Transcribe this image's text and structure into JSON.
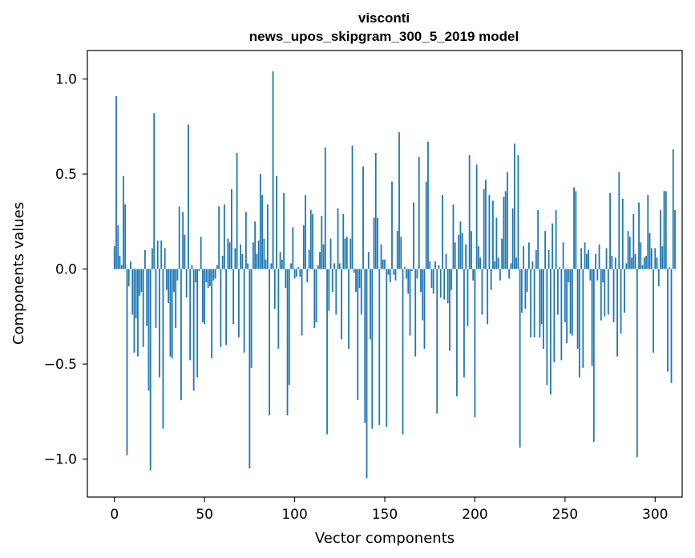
{
  "chart_data": {
    "type": "bar",
    "title": "visconti",
    "subtitle": "news_upos_skipgram_300_5_2019 model",
    "xlabel": "Vector components",
    "ylabel": "Components values",
    "xlim": [
      -15,
      315
    ],
    "ylim": [
      -1.2,
      1.15
    ],
    "xticks": [
      0,
      50,
      100,
      150,
      200,
      250,
      300
    ],
    "xtick_labels": [
      "0",
      "50",
      "100",
      "150",
      "200",
      "250",
      "300"
    ],
    "yticks": [
      -1.0,
      -0.5,
      0.0,
      0.5,
      1.0
    ],
    "ytick_labels": [
      "−1.0",
      "−0.5",
      "0.0",
      "0.5",
      "1.0"
    ],
    "bar_color": "#1f77b4",
    "grid": false,
    "series": [
      {
        "name": "visconti",
        "values": [
          0.12,
          0.91,
          0.23,
          0.07,
          0.02,
          0.49,
          0.34,
          -0.98,
          -0.09,
          0.04,
          -0.24,
          -0.44,
          -0.26,
          -0.46,
          -0.14,
          -0.12,
          -0.41,
          0.1,
          -0.3,
          -0.64,
          -1.06,
          0.11,
          0.82,
          -0.31,
          0.15,
          -0.57,
          0.15,
          -0.84,
          0.11,
          -0.11,
          -0.18,
          -0.46,
          -0.47,
          -0.12,
          -0.31,
          -0.06,
          0.33,
          -0.69,
          0.3,
          0.18,
          -0.15,
          0.76,
          -0.48,
          0.02,
          -0.64,
          -0.07,
          -0.57,
          -0.01,
          0.17,
          -0.28,
          -0.29,
          -0.07,
          -0.1,
          -0.09,
          -0.47,
          -0.06,
          -0.05,
          0.02,
          0.33,
          -0.41,
          0.07,
          0.34,
          -0.4,
          0.16,
          0.14,
          0.42,
          -0.29,
          0.11,
          0.61,
          -0.36,
          0.13,
          0.08,
          -0.44,
          0.3,
          0.03,
          -1.05,
          -0.52,
          0.14,
          0.25,
          0.08,
          0.15,
          0.5,
          0.39,
          0.16,
          0.05,
          0.34,
          -0.77,
          0.03,
          1.04,
          -0.21,
          0.49,
          -0.42,
          0.09,
          0.05,
          0.4,
          -0.1,
          -0.77,
          -0.61,
          0.03,
          0.22,
          -0.05,
          -0.04,
          0.01,
          -0.04,
          -0.35,
          0.23,
          0.39,
          -0.07,
          0.1,
          0.31,
          0.29,
          -0.31,
          -0.28,
          0.02,
          0.09,
          0.28,
          0.13,
          0.64,
          -0.87,
          -0.22,
          0.16,
          -0.12,
          0.03,
          -0.24,
          0.32,
          0.03,
          -0.37,
          0.29,
          0.16,
          0.17,
          -0.42,
          0.16,
          0.65,
          -0.02,
          -0.12,
          -0.69,
          -0.1,
          -0.24,
          0.54,
          -0.81,
          -1.1,
          0.09,
          -0.37,
          -0.84,
          0.27,
          0.61,
          0.27,
          -0.82,
          0.13,
          0.05,
          0.05,
          -0.83,
          -0.03,
          -0.07,
          0.46,
          -0.03,
          -0.06,
          0.2,
          0.72,
          0.17,
          -0.87,
          0.01,
          -0.05,
          -0.13,
          -0.35,
          -0.01,
          0.35,
          -0.46,
          -0.05,
          0.59,
          -0.12,
          -0.27,
          -0.42,
          0.46,
          0.67,
          0.04,
          -0.1,
          -0.13,
          0.04,
          -0.76,
          0.02,
          -0.15,
          0.39,
          -0.16,
          0.08,
          -0.18,
          -0.43,
          -0.11,
          0.34,
          0.14,
          -0.67,
          0.18,
          0.25,
          0.19,
          -0.57,
          0.13,
          -0.3,
          0.6,
          0.2,
          -0.06,
          -0.78,
          0.55,
          0.12,
          0.06,
          -0.24,
          0.42,
          0.47,
          -0.29,
          0.39,
          -0.11,
          0.36,
          0.04,
          0.27,
          0.06,
          -0.06,
          0.16,
          0.38,
          0.41,
          0.51,
          -0.05,
          0.03,
          0.32,
          0.66,
          0.06,
          0.6,
          -0.94,
          -0.23,
          0.12,
          -0.21,
          -0.12,
          0.14,
          -0.36,
          0.04,
          -0.36,
          0.1,
          0.31,
          -0.36,
          -0.29,
          -0.42,
          0.2,
          -0.61,
          0.1,
          -0.66,
          0.24,
          -0.49,
          0.31,
          -0.24,
          0.01,
          -0.48,
          0.14,
          -0.28,
          -0.39,
          -0.07,
          -0.34,
          -0.35,
          0.43,
          0.41,
          -0.42,
          -0.57,
          0.11,
          -0.52,
          0.14,
          0.08,
          0.1,
          -0.06,
          -0.51,
          -0.91,
          0.08,
          -0.06,
          0.13,
          -0.27,
          -0.07,
          -0.25,
          0.11,
          -0.24,
          0.4,
          0.07,
          -0.28,
          0.06,
          -0.46,
          0.51,
          -0.34,
          0.37,
          -0.23,
          0.03,
          0.2,
          0.17,
          0.06,
          0.29,
          0.08,
          -0.99,
          0.35,
          0.14,
          0.02,
          0.06,
          0.07,
          0.39,
          0.19,
          0.11,
          -0.44,
          0.11,
          0.06,
          -0.09,
          0.31,
          0.12,
          0.41,
          0.41,
          -0.54,
          0.01,
          -0.6,
          0.63,
          0.31
        ]
      }
    ]
  }
}
